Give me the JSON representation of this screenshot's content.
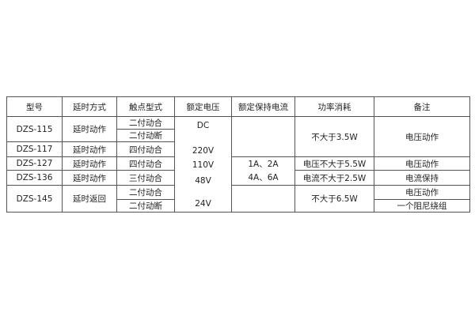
{
  "headers": [
    "型号",
    "延时方式",
    "触点型式",
    "额定电压",
    "额定保持电流",
    "功率消耗",
    "备注"
  ],
  "models": [
    "DZS-115",
    "DZS-117",
    "DZS-127",
    "DZS-136",
    "DZS-145"
  ],
  "delay_modes": [
    "延时动作",
    "延时动作",
    "延时动作",
    "延时动作",
    "延时返回"
  ],
  "contacts": [
    "二付动合",
    "二付动断",
    "四付动合",
    "四付动合",
    "三付动合",
    "二付动合",
    "二付动断"
  ],
  "voltages": [
    "DC",
    "220V",
    "110V",
    "48V",
    "24V"
  ],
  "currents": [
    "1A、2A",
    "4A、6A"
  ],
  "power": [
    "不大于3.5W",
    "电压不大于5.5W",
    "电流不大于2.5W",
    "不大于6.5W"
  ],
  "notes": [
    "电压动作",
    "电压动作",
    "电流保持",
    "电压动作",
    "一个阻尼绕组"
  ]
}
